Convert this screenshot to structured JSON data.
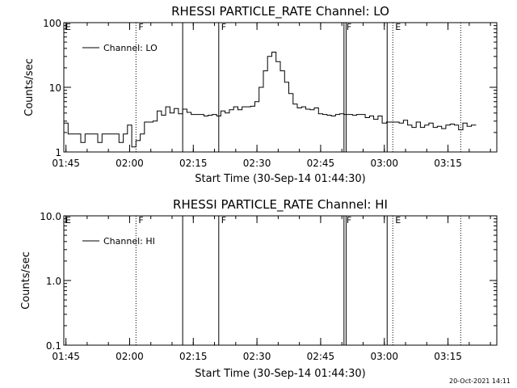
{
  "footer_timestamp": "20-Oct-2021 14:11",
  "chart_data": [
    {
      "type": "line",
      "title": "RHESSI PARTICLE_RATE Channel: LO",
      "xlabel": "Start Time (30-Sep-14 01:44:30)",
      "ylabel": "Counts/sec",
      "y_scale": "log",
      "ylim": [
        1,
        100
      ],
      "y_ticks": [
        "1",
        "10",
        "100"
      ],
      "xlim": [
        "01:44:30",
        "03:26:30"
      ],
      "x_ticks": [
        "01:45",
        "02:00",
        "02:15",
        "02:30",
        "02:45",
        "03:00",
        "03:15"
      ],
      "grid": false,
      "legend_position": "top-left",
      "series": [
        {
          "name": "Channel: LO",
          "x": [
            "01:44:30",
            "01:45:30",
            "01:46:30",
            "01:47:30",
            "01:48:30",
            "01:49:30",
            "01:50:30",
            "01:51:30",
            "01:52:30",
            "01:53:30",
            "01:54:30",
            "01:55:30",
            "01:56:30",
            "01:57:30",
            "01:58:30",
            "01:59:30",
            "02:00:30",
            "02:01:30",
            "02:02:30",
            "02:03:30",
            "02:04:30",
            "02:05:30",
            "02:06:30",
            "02:07:30",
            "02:08:30",
            "02:09:30",
            "02:10:30",
            "02:11:30",
            "02:12:30",
            "02:13:30",
            "02:14:30",
            "02:15:30",
            "02:16:30",
            "02:17:30",
            "02:18:30",
            "02:19:30",
            "02:20:30",
            "02:21:30",
            "02:22:30",
            "02:23:30",
            "02:24:30",
            "02:25:30",
            "02:26:30",
            "02:27:30",
            "02:28:30",
            "02:29:30",
            "02:30:30",
            "02:31:30",
            "02:32:30",
            "02:33:30",
            "02:34:30",
            "02:35:30",
            "02:36:30",
            "02:37:30",
            "02:38:30",
            "02:39:30",
            "02:40:30",
            "02:41:30",
            "02:42:30",
            "02:43:30",
            "02:44:30",
            "02:45:30",
            "02:46:30",
            "02:47:30",
            "02:48:30",
            "02:49:30",
            "02:50:30",
            "02:51:30",
            "02:52:30",
            "02:53:30",
            "02:54:30",
            "02:55:30",
            "02:56:30",
            "02:57:30",
            "02:58:30",
            "02:59:30",
            "03:00:30",
            "03:01:30",
            "03:02:30",
            "03:03:30",
            "03:04:30",
            "03:05:30",
            "03:06:30",
            "03:07:30",
            "03:08:30",
            "03:09:30",
            "03:10:30",
            "03:11:30",
            "03:12:30",
            "03:13:30",
            "03:14:30",
            "03:15:30",
            "03:16:30",
            "03:17:30",
            "03:18:30",
            "03:19:30",
            "03:20:30"
          ],
          "y": [
            2.8,
            1.9,
            1.9,
            1.9,
            1.4,
            1.9,
            1.9,
            1.9,
            1.4,
            1.9,
            1.9,
            1.9,
            1.9,
            1.4,
            1.9,
            2.6,
            1.2,
            1.5,
            1.9,
            2.9,
            2.9,
            3.0,
            4.3,
            3.7,
            5.0,
            4.0,
            4.7,
            3.9,
            4.6,
            4.1,
            3.8,
            3.8,
            3.8,
            3.6,
            3.7,
            3.8,
            3.6,
            4.3,
            4.0,
            4.5,
            5.0,
            4.5,
            5.0,
            5.0,
            5.1,
            6.0,
            10.0,
            18.0,
            30.0,
            35.0,
            25.0,
            18.0,
            12.0,
            8.0,
            5.5,
            4.8,
            5.0,
            4.6,
            4.5,
            4.8,
            3.9,
            3.8,
            3.7,
            3.6,
            3.8,
            3.9,
            3.8,
            3.8,
            3.7,
            3.8,
            3.8,
            3.4,
            3.6,
            3.2,
            3.6,
            2.8,
            2.9,
            2.9,
            2.9,
            2.8,
            3.1,
            2.6,
            2.4,
            2.9,
            2.4,
            2.6,
            2.8,
            2.4,
            2.5,
            2.3,
            2.6,
            2.7,
            2.6,
            2.2,
            2.8,
            2.5,
            2.6
          ]
        }
      ],
      "vertical_markers": [
        {
          "time": "02:01:30",
          "style": "dotted",
          "label": "F"
        },
        {
          "time": "02:12:30",
          "style": "solid",
          "label": ""
        },
        {
          "time": "02:21:00",
          "style": "solid",
          "label": "F"
        },
        {
          "time": "02:50:30",
          "style": "solid",
          "label": "F"
        },
        {
          "time": "02:51:00",
          "style": "solid",
          "label": ""
        },
        {
          "time": "03:00:40",
          "style": "solid",
          "label": ""
        },
        {
          "time": "03:02:00",
          "style": "dotted",
          "label": "E"
        },
        {
          "time": "03:18:00",
          "style": "dotted",
          "label": ""
        }
      ],
      "edge_labels": [
        "E"
      ]
    },
    {
      "type": "line",
      "title": "RHESSI PARTICLE_RATE Channel: HI",
      "xlabel": "Start Time (30-Sep-14 01:44:30)",
      "ylabel": "Counts/sec",
      "y_scale": "log",
      "ylim": [
        0.1,
        10
      ],
      "y_ticks": [
        "0.1",
        "1.0",
        "10.0"
      ],
      "xlim": [
        "01:44:30",
        "03:26:30"
      ],
      "x_ticks": [
        "01:45",
        "02:00",
        "02:15",
        "02:30",
        "02:45",
        "03:00",
        "03:15"
      ],
      "grid": false,
      "legend_position": "top-left",
      "series": [
        {
          "name": "Channel: HI",
          "x": [],
          "y": []
        }
      ],
      "vertical_markers": [
        {
          "time": "02:01:30",
          "style": "dotted",
          "label": "F"
        },
        {
          "time": "02:12:30",
          "style": "solid",
          "label": ""
        },
        {
          "time": "02:21:00",
          "style": "solid",
          "label": "F"
        },
        {
          "time": "02:50:30",
          "style": "solid",
          "label": "F"
        },
        {
          "time": "02:51:00",
          "style": "solid",
          "label": ""
        },
        {
          "time": "03:00:40",
          "style": "solid",
          "label": ""
        },
        {
          "time": "03:02:00",
          "style": "dotted",
          "label": "E"
        },
        {
          "time": "03:18:00",
          "style": "dotted",
          "label": ""
        }
      ],
      "edge_labels": [
        "E"
      ]
    }
  ]
}
